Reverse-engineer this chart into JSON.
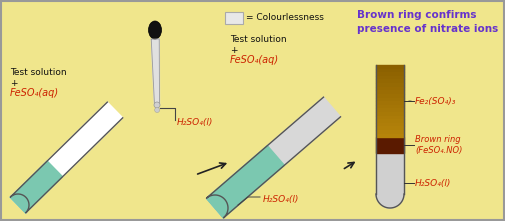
{
  "bg_color": "#f0e68c",
  "border_color": "#999999",
  "title_text": "Brown ring confirms\npresence of nitrate ions",
  "title_color": "#6633cc",
  "legend_box_color": "#e8e8e8",
  "legend_text": "= Colourlessness",
  "test1_label1": "Test solution",
  "test1_label2": "+",
  "test1_label3": "FeSO₄(aq)",
  "test2_label1": "Test solution",
  "test2_label2": "+",
  "test2_label3": "FeSO₄(aq)",
  "h2so4_label": "H₂SO₄(l)",
  "h2so4_label2": "H₂SO₄(l)",
  "h2so4_label3": "H₂SO₄(l)",
  "fe2so4_label": "Fe₂(SO₄)₃",
  "brown_ring_label": "Brown ring\n(FeSO₄.NO)",
  "label_color_red": "#cc2200",
  "label_color_dark": "#111111",
  "tube1_liquid_color": "#7bc8b0",
  "tube2_top_color": "#7bc8b0",
  "tube2_bottom_color": "#d8d8d8",
  "tube3_top_color": "#b8860b",
  "tube3_mid_color": "#5a1a00",
  "tube3_bottom_color": "#d0d0d0",
  "arrow_color": "#222222"
}
